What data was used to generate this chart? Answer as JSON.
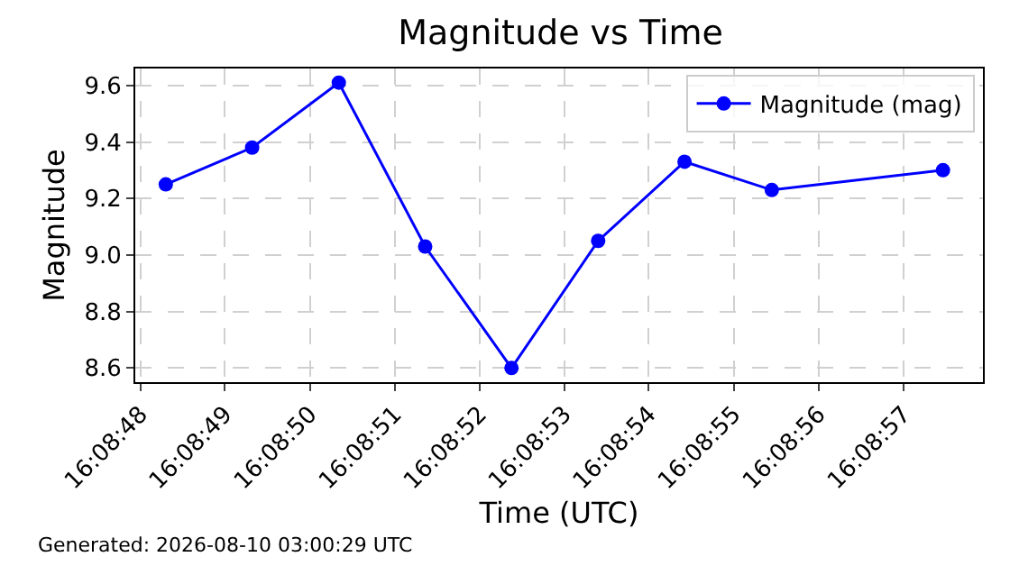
{
  "chart_data": {
    "type": "line",
    "title": "Magnitude vs Time",
    "xlabel": "Time (UTC)",
    "ylabel": "Magnitude",
    "annotations": [
      "Generated: 2026-08-10 03:00:29 UTC"
    ],
    "x": [
      16.14675,
      16.147033,
      16.147317,
      16.1476,
      16.147883,
      16.148167,
      16.14845,
      16.148736,
      16.149297
    ],
    "series": [
      {
        "name": "Magnitude (mag)",
        "color": "#0000ff",
        "values": [
          9.25,
          9.38,
          9.61,
          9.03,
          8.6,
          9.05,
          9.33,
          9.23,
          9.3
        ]
      }
    ],
    "xlim": [
      16.14665,
      16.149428
    ],
    "xticks": [
      {
        "value": 16.146667,
        "label": "16:08:48"
      },
      {
        "value": 16.146944,
        "label": "16:08:49"
      },
      {
        "value": 16.147222,
        "label": "16:08:50"
      },
      {
        "value": 16.1475,
        "label": "16:08:51"
      },
      {
        "value": 16.147778,
        "label": "16:08:52"
      },
      {
        "value": 16.148056,
        "label": "16:08:53"
      },
      {
        "value": 16.148333,
        "label": "16:08:54"
      },
      {
        "value": 16.148611,
        "label": "16:08:55"
      },
      {
        "value": 16.148889,
        "label": "16:08:56"
      },
      {
        "value": 16.149167,
        "label": "16:08:57"
      }
    ],
    "ylim": [
      8.55,
      9.66
    ],
    "yticks": [
      8.6,
      8.8,
      {
        "value": 9,
        "label": "9.0"
      },
      9.2,
      9.4,
      9.6
    ],
    "grid": true,
    "legend": "top right",
    "marker": "circle",
    "line_style": "solid"
  }
}
